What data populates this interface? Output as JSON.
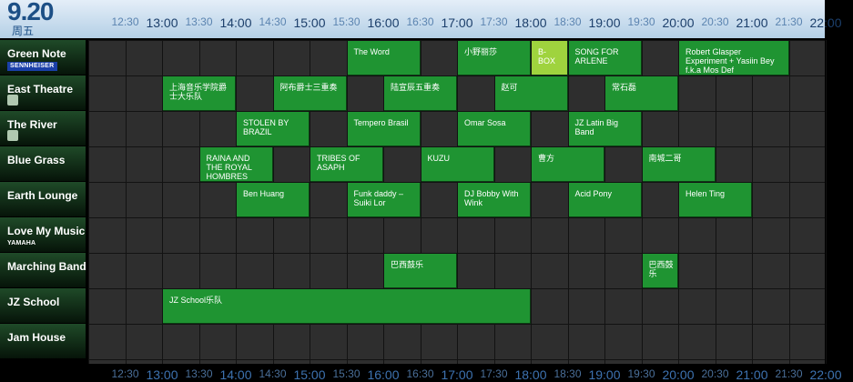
{
  "date": {
    "day": "9.20",
    "weekday": "周五"
  },
  "time_labels": [
    "12:30",
    "13:00",
    "13:30",
    "14:00",
    "14:30",
    "15:00",
    "15:30",
    "16:00",
    "16:30",
    "17:00",
    "17:30",
    "18:00",
    "18:30",
    "19:00",
    "19:30",
    "20:00",
    "20:30",
    "21:00",
    "21:30",
    "22:00"
  ],
  "stages": [
    {
      "name": "Green Note",
      "sponsor": "SENNHEISER"
    },
    {
      "name": "East Theatre",
      "sponsor": ""
    },
    {
      "name": "The River",
      "sponsor": ""
    },
    {
      "name": "Blue Grass",
      "sponsor": ""
    },
    {
      "name": "Earth Lounge",
      "sponsor": ""
    },
    {
      "name": "Love My Music",
      "sponsor": "YAMAHA"
    },
    {
      "name": "Marching Band",
      "sponsor": ""
    },
    {
      "name": "JZ School",
      "sponsor": ""
    },
    {
      "name": "Jam House",
      "sponsor": ""
    }
  ],
  "events": [
    {
      "stage": 0,
      "start": "15:30",
      "end": "16:30",
      "title": "The Word"
    },
    {
      "stage": 0,
      "start": "17:00",
      "end": "18:00",
      "title": "小野丽莎"
    },
    {
      "stage": 0,
      "start": "18:00",
      "end": "18:30",
      "title": "B-BOX",
      "highlight": true
    },
    {
      "stage": 0,
      "start": "18:30",
      "end": "19:30",
      "title": "SONG FOR ARLENE"
    },
    {
      "stage": 0,
      "start": "20:00",
      "end": "21:30",
      "title": "Robert Glasper Experiment + Yasiin Bey f.k.a Mos Def"
    },
    {
      "stage": 1,
      "start": "13:00",
      "end": "14:00",
      "title": "上海音乐学院爵士大乐队"
    },
    {
      "stage": 1,
      "start": "14:30",
      "end": "15:30",
      "title": "阿布爵士三重奏"
    },
    {
      "stage": 1,
      "start": "16:00",
      "end": "17:00",
      "title": "陆宣辰五重奏"
    },
    {
      "stage": 1,
      "start": "17:30",
      "end": "18:30",
      "title": "赵可"
    },
    {
      "stage": 1,
      "start": "19:00",
      "end": "20:00",
      "title": "常石磊"
    },
    {
      "stage": 2,
      "start": "14:00",
      "end": "15:00",
      "title": "STOLEN BY BRAZIL"
    },
    {
      "stage": 2,
      "start": "15:30",
      "end": "16:30",
      "title": "Tempero Brasil"
    },
    {
      "stage": 2,
      "start": "17:00",
      "end": "18:00",
      "title": "Omar Sosa"
    },
    {
      "stage": 2,
      "start": "18:30",
      "end": "19:30",
      "title": "JZ Latin Big Band"
    },
    {
      "stage": 3,
      "start": "13:30",
      "end": "14:30",
      "title": "RAINA AND THE ROYAL HOMBRES"
    },
    {
      "stage": 3,
      "start": "15:00",
      "end": "16:00",
      "title": "TRIBES OF ASAPH"
    },
    {
      "stage": 3,
      "start": "16:30",
      "end": "17:30",
      "title": "KUZU"
    },
    {
      "stage": 3,
      "start": "18:00",
      "end": "19:00",
      "title": "曹方"
    },
    {
      "stage": 3,
      "start": "19:30",
      "end": "20:30",
      "title": "南城二哥"
    },
    {
      "stage": 4,
      "start": "14:00",
      "end": "15:00",
      "title": "Ben Huang"
    },
    {
      "stage": 4,
      "start": "15:30",
      "end": "16:30",
      "title": "Funk daddy – Suiki Lor"
    },
    {
      "stage": 4,
      "start": "17:00",
      "end": "18:00",
      "title": "DJ Bobby With Wink"
    },
    {
      "stage": 4,
      "start": "18:30",
      "end": "19:30",
      "title": "Acid Pony"
    },
    {
      "stage": 4,
      "start": "20:00",
      "end": "21:00",
      "title": "Helen Ting"
    },
    {
      "stage": 6,
      "start": "16:00",
      "end": "17:00",
      "title": "巴西鼓乐"
    },
    {
      "stage": 6,
      "start": "19:30",
      "end": "20:00",
      "title": "巴西鼓乐"
    },
    {
      "stage": 7,
      "start": "13:00",
      "end": "18:00",
      "title": "JZ School乐队"
    }
  ],
  "colors": {
    "event": "#1f9432",
    "event_highlight": "#9fd33e",
    "header": "#c9dcee",
    "stage_label": "#1f4a28"
  }
}
